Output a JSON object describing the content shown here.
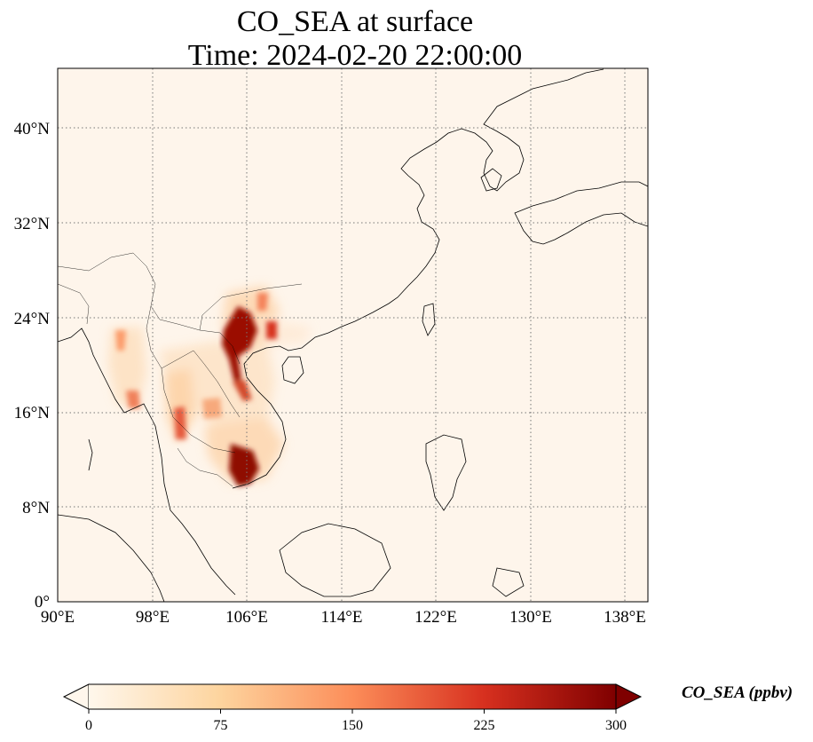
{
  "title": {
    "line1": "CO_SEA at surface",
    "line2": "Time: 2024-02-20 22:00:00"
  },
  "map": {
    "extent": {
      "lon": [
        90,
        140
      ],
      "lat": [
        0,
        45
      ]
    },
    "lon_ticks": [
      "90°E",
      "98°E",
      "106°E",
      "114°E",
      "122°E",
      "130°E",
      "138°E"
    ],
    "lat_ticks": [
      "0°",
      "8°N",
      "16°N",
      "24°N",
      "32°N",
      "40°N"
    ],
    "gridlines": true,
    "background_color": "#fff5eb"
  },
  "colorbar": {
    "label": "CO_SEA (ppbv)",
    "ticks": [
      "0",
      "75",
      "150",
      "225",
      "300"
    ],
    "range": [
      0,
      300
    ],
    "colormap": "OrRd",
    "colors": [
      "#fff5eb",
      "#fdd49e",
      "#fc8d59",
      "#d7301f",
      "#7f0000"
    ],
    "extend": "both"
  }
}
